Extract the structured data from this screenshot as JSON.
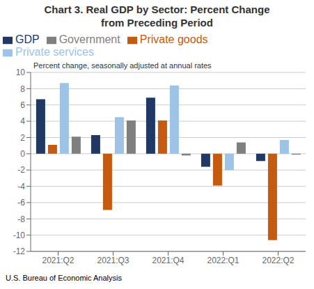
{
  "chart_data": {
    "type": "bar",
    "title": "Chart 3. Real GDP by Sector: Percent Change",
    "subtitle": "from Preceding Period",
    "ylabel": "Percent change, seasonally adjusted at annual rates",
    "annotations": [
      "U.S. Bureau of Economic Analysis"
    ],
    "categories": [
      "2021:Q2",
      "2021:Q3",
      "2021:Q4",
      "2022:Q1",
      "2022:Q2"
    ],
    "series": [
      {
        "name": "GDP",
        "color": "#1F3864",
        "values": [
          6.7,
          2.3,
          6.9,
          -1.6,
          -0.9
        ]
      },
      {
        "name": "Private goods",
        "color": "#C55A11",
        "values": [
          1.1,
          -6.9,
          4.1,
          -3.9,
          -10.6
        ]
      },
      {
        "name": "Private services",
        "color": "#9DC3E6",
        "values": [
          8.7,
          4.5,
          8.4,
          -2.0,
          1.7
        ]
      },
      {
        "name": "Government",
        "color": "#7F7F7F",
        "values": [
          2.1,
          4.1,
          -0.2,
          1.4,
          -0.1
        ]
      }
    ],
    "ylim": [
      -12,
      10
    ],
    "yticks": [
      -12,
      -10,
      -8,
      -6,
      -4,
      -2,
      0,
      2,
      4,
      6,
      8,
      10
    ],
    "grid": true,
    "legend": "upper left"
  }
}
